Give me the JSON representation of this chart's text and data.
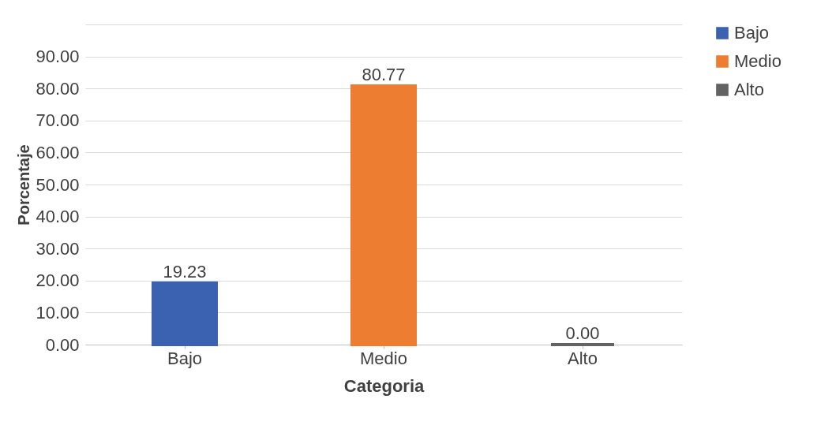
{
  "chart_data": {
    "type": "bar",
    "xlabel": "Categoria",
    "ylabel": "Porcentaje",
    "categories": [
      "Bajo",
      "Medio",
      "Alto"
    ],
    "series": [
      {
        "name": "Bajo",
        "color": "#3a62b0",
        "values": [
          19.23,
          null,
          null
        ],
        "value_labels": [
          "19.23",
          null,
          null
        ]
      },
      {
        "name": "Medio",
        "color": "#ed7d31",
        "values": [
          null,
          80.77,
          null
        ],
        "value_labels": [
          null,
          "80.77",
          null
        ]
      },
      {
        "name": "Alto",
        "color": "#636363",
        "values": [
          null,
          null,
          0.0
        ],
        "value_labels": [
          null,
          null,
          "0.00"
        ]
      }
    ],
    "ylim": [
      0,
      100
    ],
    "yticks": [
      {
        "value": 0,
        "label": "0.00"
      },
      {
        "value": 10,
        "label": "10.00"
      },
      {
        "value": 20,
        "label": "20.00"
      },
      {
        "value": 30,
        "label": "30.00"
      },
      {
        "value": 40,
        "label": "40.00"
      },
      {
        "value": 50,
        "label": "50.00"
      },
      {
        "value": 60,
        "label": "60.00"
      },
      {
        "value": 70,
        "label": "70.00"
      },
      {
        "value": 80,
        "label": "80.00"
      },
      {
        "value": 90,
        "label": "90.00"
      },
      {
        "value": 100,
        "label": null
      }
    ],
    "grid": "y",
    "legend": "right"
  }
}
